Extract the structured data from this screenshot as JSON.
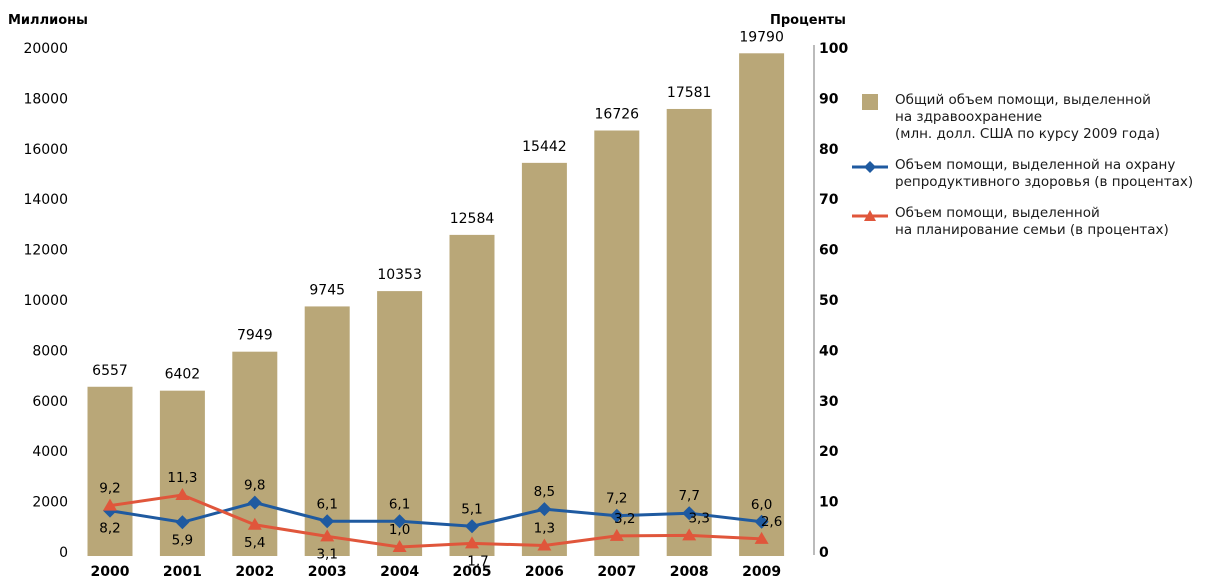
{
  "chart_data": {
    "type": "bar",
    "categories": [
      "2000",
      "2001",
      "2002",
      "2003",
      "2004",
      "2005",
      "2006",
      "2007",
      "2008",
      "2009"
    ],
    "left_axis": {
      "title": "Миллионы",
      "ylim": [
        0,
        20000
      ],
      "ticks": [
        "0",
        "2000",
        "4000",
        "6000",
        "8000",
        "10000",
        "12000",
        "14000",
        "16000",
        "18000",
        "20000"
      ]
    },
    "right_axis": {
      "title": "Проценты",
      "ylim": [
        0,
        100
      ],
      "ticks": [
        "0",
        "10",
        "20",
        "30",
        "40",
        "50",
        "60",
        "70",
        "80",
        "90",
        "100"
      ]
    },
    "series": [
      {
        "name": "Общий объем помощи, выделенной на здравоохранение (млн. долл. США по курсу 2009 года)",
        "legend_lines": [
          "Общий объем помощи, выделенной",
          "на здравоохранение",
          "(млн. долл. США по курсу 2009 года)"
        ],
        "kind": "bar",
        "axis": "left",
        "color": "#b9a778",
        "values": [
          6557,
          6402,
          7949,
          9745,
          10353,
          12584,
          15442,
          16726,
          17581,
          19790
        ],
        "labels": [
          "6557",
          "6402",
          "7949",
          "9745",
          "10353",
          "12584",
          "15442",
          "16726",
          "17581",
          "19790"
        ]
      },
      {
        "name": "Объем помощи, выделенной на охрану репродуктивного здоровья (в процентах)",
        "legend_lines": [
          "Объем помощи, выделенной на охрану",
          "репродуктивного здоровья (в процентах)"
        ],
        "kind": "line",
        "marker": "diamond",
        "axis": "right",
        "color": "#1f5aa0",
        "values": [
          8.2,
          5.9,
          9.8,
          6.1,
          6.1,
          5.1,
          8.5,
          7.2,
          7.7,
          6.0
        ],
        "labels": [
          "8,2",
          "5,9",
          "9,8",
          "6,1",
          "6,1",
          "5,1",
          "8,5",
          "7,2",
          "7,7",
          "6,0"
        ]
      },
      {
        "name": "Объем помощи, выделенной на планирование семьи (в процентах)",
        "legend_lines": [
          "Объем помощи, выделенной",
          "на планирование семьи (в процентах)"
        ],
        "kind": "line",
        "marker": "triangle",
        "axis": "right",
        "color": "#e0563b",
        "values": [
          9.2,
          11.3,
          5.4,
          3.1,
          1.0,
          1.7,
          1.3,
          3.2,
          3.3,
          2.6
        ],
        "labels": [
          "9,2",
          "11,3",
          "5,4",
          "3,1",
          "1,0",
          "1,7",
          "1,3",
          "3,2",
          "3,3",
          "2,6"
        ]
      }
    ]
  }
}
